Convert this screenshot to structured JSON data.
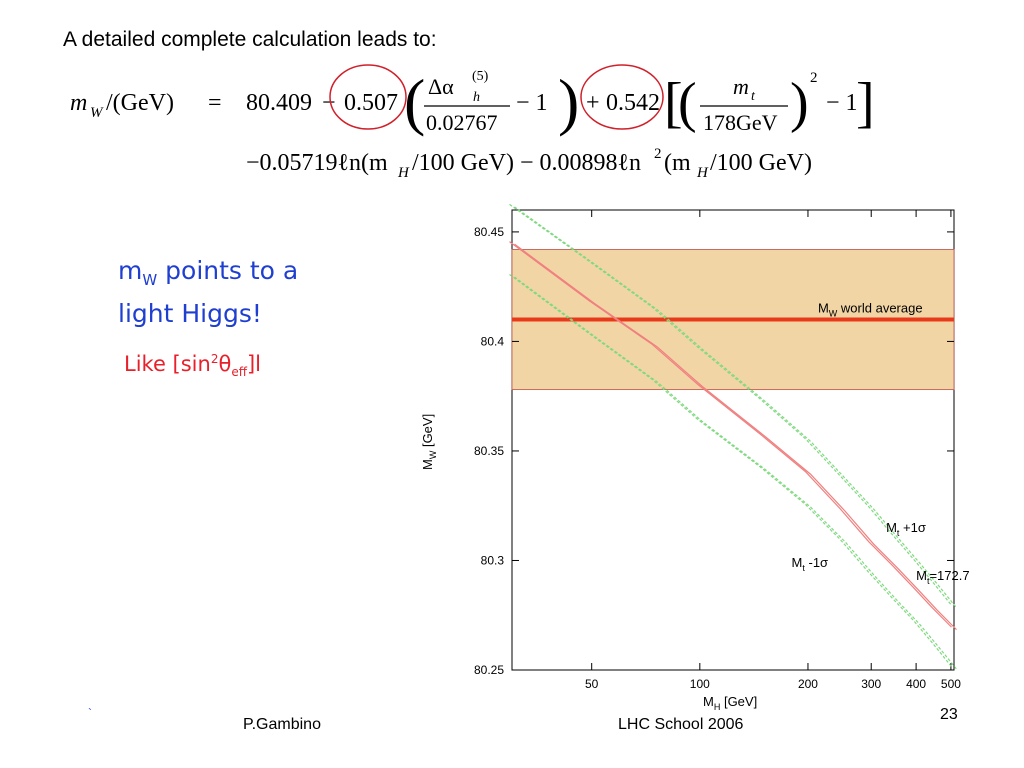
{
  "slide": {
    "intro_text": "A detailed complete calculation leads to:",
    "formula": {
      "lhs_m": "m",
      "lhs_sub": "W",
      "lhs_unit": "/(GeV)",
      "equals": "=",
      "base": "80.409",
      "minus1": "−",
      "coef1": "0.507",
      "delta_alpha": "Δα",
      "delta_sub": "h",
      "delta_sup": "(5)",
      "denom1": "0.02767",
      "minus_one": "− 1",
      "plus": "+",
      "coef2": "0.542",
      "mt_num": "m",
      "mt_sub": "t",
      "mt_denom": "178GeV",
      "power": "2",
      "line2": "−0.05719ℓn(m",
      "line2_sub": "H",
      "line2_mid": "/100 GeV) − 0.00898ℓn",
      "line2_sup": "2",
      "line2_end": "/100 GeV)"
    },
    "message_line1_main": "m",
    "message_line1_sub": "W",
    "message_line1_rest": " points to a",
    "message_line2": "light Higgs!",
    "like_prefix": "Like [sin",
    "like_sup": "2",
    "like_theta": "θ",
    "like_sub": "eff",
    "like_suffix": "]l",
    "corner_mark": "`",
    "footer_author": "P.Gambino",
    "footer_event": "LHC School 2006",
    "page_number": "23"
  },
  "colors": {
    "blue_text": "#1f3fd0",
    "red_text": "#e8202a",
    "band_fill": "#f2d5a5",
    "world_average_line": "#e83a1a",
    "central_curve": "#f08080",
    "sigma_curves": "#7fd97f",
    "annotation_circle": "#d0202a"
  },
  "chart_data": {
    "type": "line",
    "xlabel": "M",
    "xlabel_sub": "H",
    "xlabel_unit": " [GeV]",
    "ylabel": "M",
    "ylabel_sub": "W",
    "ylabel_unit": " [GeV]",
    "xlim": [
      30,
      510
    ],
    "ylim": [
      80.25,
      80.46
    ],
    "xticks": [
      50,
      100,
      200,
      300,
      400,
      500
    ],
    "yticks": [
      80.25,
      80.3,
      80.35,
      80.4,
      80.45
    ],
    "ytick_labels": [
      "80.25",
      "80.3",
      "80.35",
      "80.4",
      "80.45"
    ],
    "band": {
      "label_main": "M",
      "label_sub": "W",
      "label_rest": " world average",
      "center": 80.41,
      "low": 80.378,
      "high": 80.442
    },
    "series": [
      {
        "name": "Mt=172.7 GeV",
        "label_main": "M",
        "label_sub": "t",
        "label_rest": "=172.7 GeV",
        "role": "central",
        "x": [
          30,
          50,
          75,
          100,
          150,
          200,
          250,
          300,
          350,
          400,
          450,
          510
        ],
        "y": [
          80.445,
          80.418,
          80.398,
          80.38,
          80.357,
          80.34,
          80.323,
          80.308,
          80.297,
          80.287,
          80.278,
          80.269
        ]
      },
      {
        "name": "Mt +1σ",
        "label_main": "M",
        "label_sub": "t",
        "label_rest": " +1σ",
        "role": "upper",
        "x": [
          30,
          50,
          75,
          100,
          150,
          200,
          250,
          300,
          350,
          400,
          450,
          510
        ],
        "y": [
          80.462,
          80.436,
          80.415,
          80.397,
          80.373,
          80.355,
          80.338,
          80.324,
          80.311,
          80.3,
          80.29,
          80.279
        ]
      },
      {
        "name": "Mt -1σ",
        "label_main": "M",
        "label_sub": "t",
        "label_rest": " -1σ",
        "role": "lower",
        "x": [
          30,
          50,
          75,
          100,
          150,
          200,
          250,
          300,
          350,
          400,
          450,
          510
        ],
        "y": [
          80.43,
          80.403,
          80.382,
          80.364,
          80.342,
          80.325,
          80.309,
          80.294,
          80.282,
          80.272,
          80.262,
          80.251
        ]
      }
    ]
  }
}
